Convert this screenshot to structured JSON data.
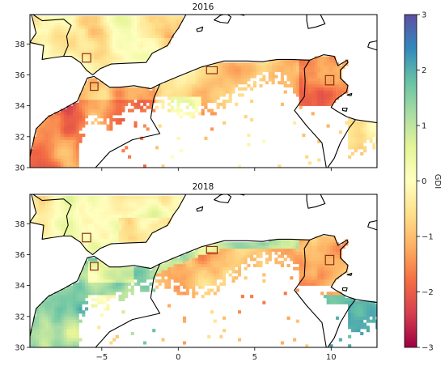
{
  "panels": [
    {
      "title": "2016",
      "pattern": "dry"
    },
    {
      "title": "2018",
      "pattern": "mixed"
    }
  ],
  "x_ticks": [
    {
      "lon": -5,
      "label": "−5"
    },
    {
      "lon": 0,
      "label": "0"
    },
    {
      "lon": 5,
      "label": "5"
    },
    {
      "lon": 10,
      "label": "10"
    }
  ],
  "y_ticks": [
    {
      "lat": 30,
      "label": "30"
    },
    {
      "lat": 32,
      "label": "32"
    },
    {
      "lat": 34,
      "label": "34"
    },
    {
      "lat": 36,
      "label": "36"
    },
    {
      "lat": 38,
      "label": "38"
    }
  ],
  "extent": {
    "lon": [
      -9.7,
      13.0
    ],
    "lat": [
      30.0,
      39.9
    ]
  },
  "colorbar": {
    "label": "GDI",
    "min": -3,
    "max": 3,
    "ticks": [
      {
        "value": 3,
        "label": "3"
      },
      {
        "value": 2,
        "label": "2"
      },
      {
        "value": 1,
        "label": "1"
      },
      {
        "value": 0,
        "label": "0"
      },
      {
        "value": -1,
        "label": "−1"
      },
      {
        "value": -2,
        "label": "−2"
      },
      {
        "value": -3,
        "label": "−3"
      }
    ],
    "colormap": "Spectral",
    "stops": [
      "#9e0142",
      "#d53e4f",
      "#f46d43",
      "#fdae61",
      "#fee08b",
      "#ffffbf",
      "#e6f598",
      "#abdda4",
      "#66c2a5",
      "#3288bd",
      "#5e4fa2"
    ]
  },
  "study_sites": [
    {
      "lon": -6.0,
      "lat": 37.1,
      "size": [
        0.55,
        0.55
      ]
    },
    {
      "lon": -5.5,
      "lat": 35.25,
      "size": [
        0.5,
        0.5
      ]
    },
    {
      "lon": 2.2,
      "lat": 36.3,
      "size": [
        0.7,
        0.45
      ]
    },
    {
      "lon": 9.9,
      "lat": 35.65,
      "size": [
        0.55,
        0.6
      ]
    }
  ],
  "box_color": "#8b2e16"
}
